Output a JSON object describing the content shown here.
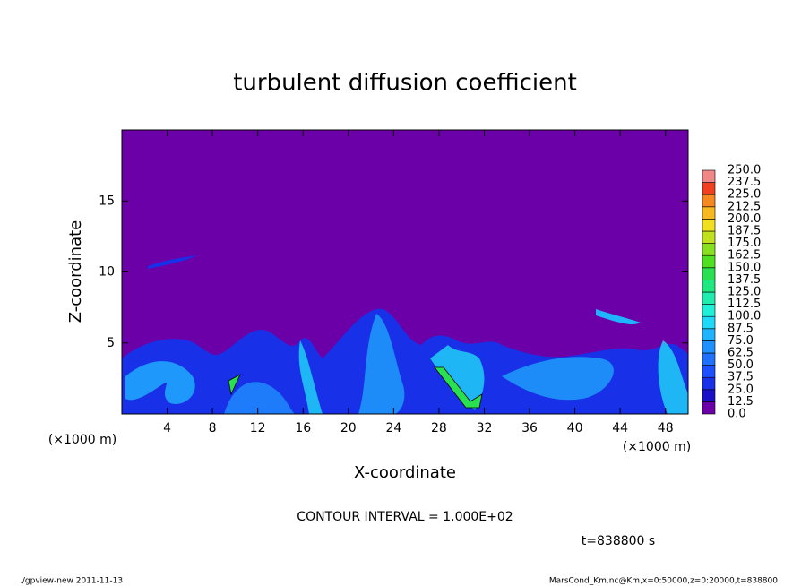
{
  "chart_data": {
    "type": "contour",
    "title": "turbulent diffusion coefficient",
    "xlabel": "X-coordinate",
    "ylabel": "Z-coordinate",
    "xunit": "(×1000 m)",
    "yunit": "(×1000 m)",
    "xlim": [
      0,
      50
    ],
    "ylim": [
      0,
      20
    ],
    "xticks": [
      4,
      8,
      12,
      16,
      20,
      24,
      28,
      32,
      36,
      40,
      44,
      48
    ],
    "yticks": [
      5,
      10,
      15
    ],
    "colorbar": {
      "levels": [
        {
          "value": 0,
          "label": "0.0"
        },
        12.5,
        {
          "value": 25,
          "label": "25.0"
        },
        37.5,
        {
          "value": 50,
          "label": "50.0"
        },
        62.5,
        {
          "value": 75,
          "label": "75.0"
        },
        87.5,
        {
          "value": 100,
          "label": "100.0"
        },
        112.5,
        {
          "value": 125,
          "label": "125.0"
        },
        137.5,
        {
          "value": 150,
          "label": "150.0"
        },
        162.5,
        {
          "value": 175,
          "label": "175.0"
        },
        187.5,
        {
          "value": 200,
          "label": "200.0"
        },
        212.5,
        {
          "value": 225,
          "label": "225.0"
        },
        237.5,
        {
          "value": 250,
          "label": "250.0"
        }
      ],
      "colors": [
        "#6c00a8",
        "#1a10c8",
        "#1830e8",
        "#1c50ff",
        "#2070ff",
        "#2090ff",
        "#20b4ff",
        "#20d8f8",
        "#20f0d8",
        "#20ecb0",
        "#20e880",
        "#28e050",
        "#50e020",
        "#88e020",
        "#c0e020",
        "#f0e020",
        "#f8b820",
        "#f88820",
        "#f04020",
        "#f08888"
      ]
    },
    "contour_interval": "CONTOUR INTERVAL = 1.000E+02",
    "time_label": "t=838800 s",
    "footer_left": "./gpview-new  2011-11-13",
    "footer_right": "MarsCond_Km.nc@Km,x=0:50000,z=0:20000,t=838800"
  }
}
